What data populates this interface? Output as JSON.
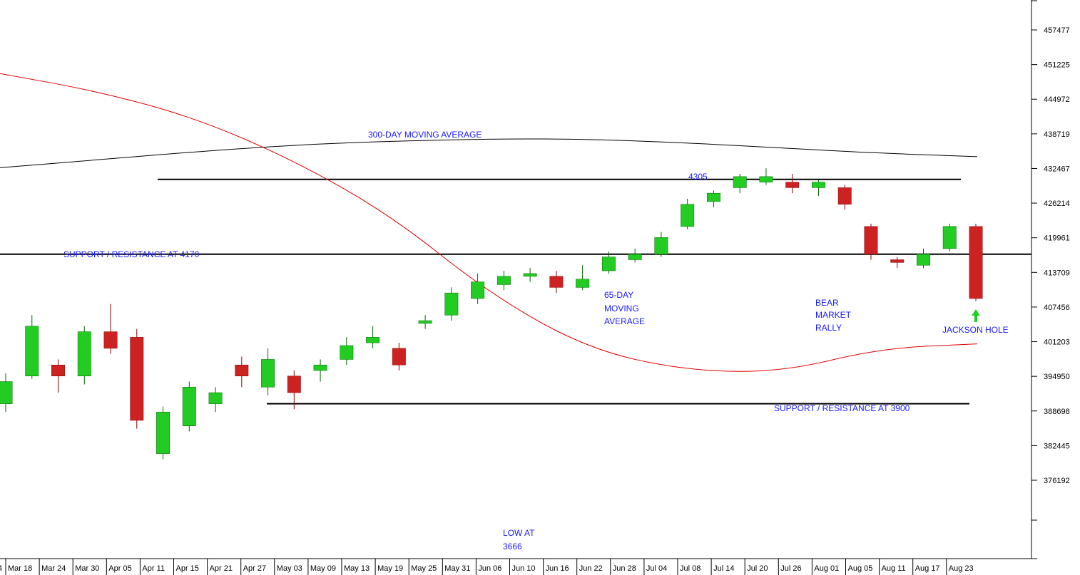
{
  "chart_data": {
    "type": "candlestick",
    "y_ticks": [
      457477,
      451225,
      444972,
      438719,
      432467,
      426214,
      419961,
      413709,
      407456,
      401203,
      394950,
      388698,
      382445,
      376192
    ],
    "ylim": [
      360000,
      466000
    ],
    "x_ticks": [
      "Mar 18",
      "Mar 24",
      "Mar 30",
      "Apr 05",
      "Apr 11",
      "Apr 15",
      "Apr 21",
      "Apr 27",
      "May 03",
      "May 09",
      "May 13",
      "May 19",
      "May 25",
      "May 31",
      "Jun 06",
      "Jun 10",
      "Jun 16",
      "Jun 22",
      "Jun 28",
      "Jul 04",
      "Jul 08",
      "Jul 14",
      "Jul 20",
      "Jul 26",
      "Aug 01",
      "Aug 05",
      "Aug 11",
      "Aug 17",
      "Aug 23"
    ],
    "x_tick_cut_fragment": "4",
    "series": [
      {
        "name": "300-DAY MOVING AVERAGE",
        "color": "#000000",
        "y": [
          432600,
          434200,
          435800,
          437000,
          437600,
          437900,
          437400,
          436400,
          435300,
          434600
        ]
      },
      {
        "name": "65-DAY MOVING AVERAGE",
        "color": "#e00000",
        "y": [
          449600,
          446400,
          441600,
          434000,
          424000,
          410000,
          400000,
          396000,
          395700,
          400000,
          400800
        ]
      }
    ],
    "candles": [
      {
        "o": 390000,
        "c": 394000,
        "h": 395500,
        "l": 388500
      },
      {
        "o": 395000,
        "c": 404000,
        "h": 406000,
        "l": 394500
      },
      {
        "o": 397000,
        "c": 395000,
        "h": 398000,
        "l": 392000
      },
      {
        "o": 395000,
        "c": 403000,
        "h": 404000,
        "l": 393500
      },
      {
        "o": 403000,
        "c": 400000,
        "h": 408000,
        "l": 399000
      },
      {
        "o": 402000,
        "c": 387000,
        "h": 403500,
        "l": 385500
      },
      {
        "o": 381000,
        "c": 388500,
        "h": 389500,
        "l": 380000
      },
      {
        "o": 386000,
        "c": 393000,
        "h": 394000,
        "l": 385000
      },
      {
        "o": 390000,
        "c": 392000,
        "h": 393000,
        "l": 388500
      },
      {
        "o": 397000,
        "c": 395000,
        "h": 398500,
        "l": 393000
      },
      {
        "o": 393000,
        "c": 398000,
        "h": 400000,
        "l": 391500
      },
      {
        "o": 395000,
        "c": 392000,
        "h": 396000,
        "l": 389000
      },
      {
        "o": 396000,
        "c": 397000,
        "h": 398000,
        "l": 394000
      },
      {
        "o": 398000,
        "c": 400500,
        "h": 402000,
        "l": 397000
      },
      {
        "o": 401000,
        "c": 402000,
        "h": 404000,
        "l": 400000
      },
      {
        "o": 400000,
        "c": 397000,
        "h": 401000,
        "l": 396000
      },
      {
        "o": 404500,
        "c": 405000,
        "h": 406000,
        "l": 403500
      },
      {
        "o": 406000,
        "c": 410000,
        "h": 411000,
        "l": 405000
      },
      {
        "o": 409000,
        "c": 412000,
        "h": 413500,
        "l": 408000
      },
      {
        "o": 411500,
        "c": 413000,
        "h": 414000,
        "l": 410500
      },
      {
        "o": 413000,
        "c": 413500,
        "h": 414500,
        "l": 412000
      },
      {
        "o": 413000,
        "c": 411000,
        "h": 414000,
        "l": 410000
      },
      {
        "o": 411000,
        "c": 412500,
        "h": 415000,
        "l": 410500
      },
      {
        "o": 414000,
        "c": 416500,
        "h": 417500,
        "l": 413500
      },
      {
        "o": 416000,
        "c": 417000,
        "h": 418000,
        "l": 415500
      },
      {
        "o": 417000,
        "c": 420000,
        "h": 421000,
        "l": 416500
      },
      {
        "o": 422000,
        "c": 426000,
        "h": 427000,
        "l": 421500
      },
      {
        "o": 426500,
        "c": 428000,
        "h": 428500,
        "l": 425500
      },
      {
        "o": 429000,
        "c": 431000,
        "h": 431500,
        "l": 428000
      },
      {
        "o": 430000,
        "c": 431000,
        "h": 432500,
        "l": 429500
      },
      {
        "o": 430000,
        "c": 429000,
        "h": 431500,
        "l": 428000
      },
      {
        "o": 429000,
        "c": 430000,
        "h": 430500,
        "l": 427500
      },
      {
        "o": 429000,
        "c": 426000,
        "h": 429500,
        "l": 425000
      },
      {
        "o": 422000,
        "c": 417000,
        "h": 422500,
        "l": 416000
      },
      {
        "o": 416000,
        "c": 415500,
        "h": 416500,
        "l": 414500
      },
      {
        "o": 415000,
        "c": 417000,
        "h": 418000,
        "l": 414500
      },
      {
        "o": 418000,
        "c": 422000,
        "h": 422500,
        "l": 417500
      },
      {
        "o": 422000,
        "c": 409000,
        "h": 422500,
        "l": 408500
      }
    ],
    "annotations": [
      {
        "text": "300-DAY MOVING AVERAGE",
        "price": 437000
      },
      {
        "text": "4305",
        "price": 430500
      },
      {
        "text": "SUPPORT / RESISTANCE AT 4170",
        "price": 417000
      },
      {
        "text": "65-DAY MOVING AVERAGE",
        "price": 406000
      },
      {
        "text": "LOW AT 3666",
        "price": 366600
      },
      {
        "text": "BEAR MARKET RALLY",
        "price": 406000
      },
      {
        "text": "JACKSON HOLE",
        "price": 401500
      },
      {
        "text": "SUPPORT / RESISTANCE AT 3900",
        "price": 390000
      }
    ],
    "horizontal_lines": [
      430500,
      417000,
      390000
    ],
    "colors": {
      "up": "#22cc22",
      "down": "#cc2222",
      "wick_up": "#006600",
      "wick_down": "#880000",
      "line": "#000000",
      "text": "#1a1aff",
      "arrow": "#22cc22"
    }
  },
  "annotations_text": {
    "ma300": "300-DAY MOVING AVERAGE",
    "level_4305": "4305",
    "support_4170": "SUPPORT / RESISTANCE AT 4170",
    "ma65_line1": "65-DAY",
    "ma65_line2": "MOVING",
    "ma65_line3": "AVERAGE",
    "low_line1": "LOW AT",
    "low_line2": "3666",
    "bear_line1": "BEAR",
    "bear_line2": "MARKET",
    "bear_line3": "RALLY",
    "jackson": "JACKSON HOLE",
    "support_3900": "SUPPORT / RESISTANCE AT 3900"
  }
}
